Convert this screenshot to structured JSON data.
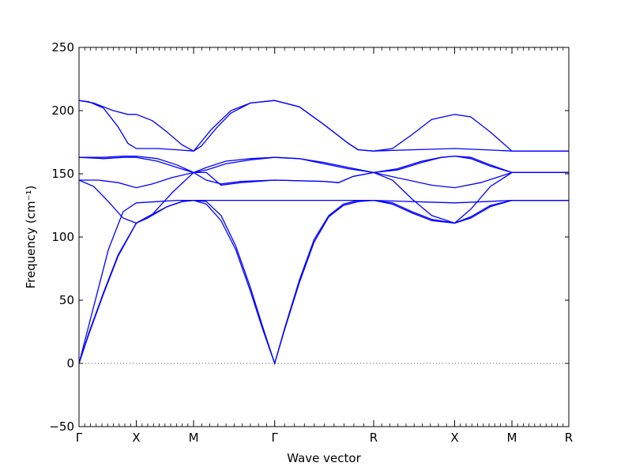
{
  "chart_data": {
    "type": "line",
    "xlabel": "Wave vector",
    "ylabel": "Frequency (cm⁻¹)",
    "ylim": [
      -50,
      250
    ],
    "yticks": [
      -50,
      0,
      50,
      100,
      150,
      200,
      250
    ],
    "xlim": [
      0,
      1
    ],
    "xticks": [
      {
        "label": "Γ",
        "x": 0.0
      },
      {
        "label": "X",
        "x": 0.117
      },
      {
        "label": "M",
        "x": 0.234
      },
      {
        "label": "Γ",
        "x": 0.3995
      },
      {
        "label": "R",
        "x": 0.6016
      },
      {
        "label": "X",
        "x": 0.7669
      },
      {
        "label": "M",
        "x": 0.8839
      },
      {
        "label": "R",
        "x": 1.0
      }
    ],
    "zero_line": true,
    "grid": false,
    "line_color": "#0000ff",
    "zero_line_color": "#555555",
    "series": [
      {
        "values": [
          [
            0,
            0
          ],
          [
            0.02,
            24
          ],
          [
            0.05,
            56
          ],
          [
            0.08,
            86
          ],
          [
            0.117,
            111
          ],
          [
            0.14,
            115
          ],
          [
            0.18,
            124
          ],
          [
            0.21,
            128
          ],
          [
            0.234,
            129
          ],
          [
            0.26,
            126
          ],
          [
            0.29,
            113
          ],
          [
            0.32,
            90
          ],
          [
            0.35,
            57
          ],
          [
            0.375,
            27
          ],
          [
            0.3995,
            0
          ],
          [
            0.42,
            28
          ],
          [
            0.45,
            66
          ],
          [
            0.48,
            98
          ],
          [
            0.51,
            117
          ],
          [
            0.54,
            126
          ],
          [
            0.57,
            129
          ],
          [
            0.6016,
            129
          ],
          [
            0.64,
            127
          ],
          [
            0.68,
            120
          ],
          [
            0.72,
            114
          ],
          [
            0.7669,
            111
          ],
          [
            0.8,
            115
          ],
          [
            0.84,
            124
          ],
          [
            0.8839,
            129
          ],
          [
            0.94,
            129
          ],
          [
            1.0,
            129
          ]
        ]
      },
      {
        "values": [
          [
            0,
            0
          ],
          [
            0.02,
            23
          ],
          [
            0.05,
            55
          ],
          [
            0.08,
            85
          ],
          [
            0.117,
            111
          ],
          [
            0.14,
            116
          ],
          [
            0.18,
            124
          ],
          [
            0.21,
            128
          ],
          [
            0.234,
            129
          ],
          [
            0.26,
            128
          ],
          [
            0.29,
            117
          ],
          [
            0.32,
            93
          ],
          [
            0.35,
            60
          ],
          [
            0.375,
            29
          ],
          [
            0.3995,
            0
          ],
          [
            0.42,
            27
          ],
          [
            0.45,
            64
          ],
          [
            0.48,
            96
          ],
          [
            0.51,
            116
          ],
          [
            0.54,
            125
          ],
          [
            0.57,
            128
          ],
          [
            0.6016,
            129
          ],
          [
            0.64,
            126
          ],
          [
            0.68,
            119
          ],
          [
            0.72,
            113
          ],
          [
            0.7669,
            111
          ],
          [
            0.8,
            116
          ],
          [
            0.84,
            125
          ],
          [
            0.8839,
            129
          ],
          [
            0.94,
            129
          ],
          [
            1.0,
            129
          ]
        ]
      },
      {
        "values": [
          [
            0,
            0
          ],
          [
            0.03,
            45
          ],
          [
            0.06,
            90
          ],
          [
            0.09,
            120
          ],
          [
            0.117,
            127
          ],
          [
            0.16,
            128
          ],
          [
            0.2,
            129
          ],
          [
            0.234,
            129
          ],
          [
            0.26,
            129
          ],
          [
            0.3995,
            129
          ],
          [
            0.5,
            129
          ],
          [
            0.6016,
            129
          ],
          [
            0.68,
            128
          ],
          [
            0.7669,
            127
          ],
          [
            0.83,
            128
          ],
          [
            0.8839,
            129
          ],
          [
            1.0,
            129
          ]
        ]
      },
      {
        "values": [
          [
            0,
            145
          ],
          [
            0.04,
            145
          ],
          [
            0.08,
            143
          ],
          [
            0.117,
            139
          ],
          [
            0.15,
            142
          ],
          [
            0.19,
            147
          ],
          [
            0.234,
            151
          ],
          [
            0.26,
            145
          ],
          [
            0.29,
            142
          ],
          [
            0.33,
            144
          ],
          [
            0.3995,
            145
          ],
          [
            0.5,
            144
          ],
          [
            0.53,
            143
          ],
          [
            0.56,
            148
          ],
          [
            0.6016,
            151
          ],
          [
            0.66,
            146
          ],
          [
            0.72,
            141
          ],
          [
            0.7669,
            139
          ],
          [
            0.82,
            143
          ],
          [
            0.8839,
            151
          ],
          [
            1.0,
            151
          ]
        ]
      },
      {
        "values": [
          [
            0,
            145
          ],
          [
            0.03,
            140
          ],
          [
            0.06,
            128
          ],
          [
            0.09,
            115
          ],
          [
            0.117,
            111
          ],
          [
            0.15,
            118
          ],
          [
            0.19,
            135
          ],
          [
            0.234,
            151
          ],
          [
            0.26,
            151
          ],
          [
            0.29,
            141
          ],
          [
            0.33,
            143
          ],
          [
            0.3995,
            145
          ],
          [
            0.5,
            144
          ],
          [
            0.53,
            143
          ],
          [
            0.56,
            148
          ],
          [
            0.6016,
            151
          ],
          [
            0.64,
            145
          ],
          [
            0.68,
            130
          ],
          [
            0.72,
            117
          ],
          [
            0.7669,
            111
          ],
          [
            0.8,
            122
          ],
          [
            0.84,
            140
          ],
          [
            0.8839,
            151
          ],
          [
            1.0,
            151
          ]
        ]
      },
      {
        "values": [
          [
            0,
            163
          ],
          [
            0.05,
            162
          ],
          [
            0.09,
            163
          ],
          [
            0.117,
            163
          ],
          [
            0.16,
            160
          ],
          [
            0.2,
            155
          ],
          [
            0.234,
            151
          ],
          [
            0.26,
            153
          ],
          [
            0.3,
            158
          ],
          [
            0.35,
            161
          ],
          [
            0.3995,
            163
          ],
          [
            0.45,
            162
          ],
          [
            0.5,
            159
          ],
          [
            0.55,
            155
          ],
          [
            0.6016,
            151
          ],
          [
            0.65,
            153
          ],
          [
            0.7,
            159
          ],
          [
            0.74,
            163
          ],
          [
            0.7669,
            164
          ],
          [
            0.8,
            162
          ],
          [
            0.84,
            156
          ],
          [
            0.8839,
            151
          ],
          [
            1.0,
            151
          ]
        ]
      },
      {
        "values": [
          [
            0,
            163
          ],
          [
            0.05,
            163
          ],
          [
            0.09,
            164
          ],
          [
            0.117,
            164
          ],
          [
            0.16,
            162
          ],
          [
            0.2,
            157
          ],
          [
            0.234,
            151
          ],
          [
            0.26,
            155
          ],
          [
            0.3,
            160
          ],
          [
            0.35,
            162
          ],
          [
            0.3995,
            163
          ],
          [
            0.45,
            162
          ],
          [
            0.5,
            158
          ],
          [
            0.55,
            154
          ],
          [
            0.6016,
            151
          ],
          [
            0.65,
            154
          ],
          [
            0.7,
            160
          ],
          [
            0.74,
            163
          ],
          [
            0.7669,
            164
          ],
          [
            0.8,
            163
          ],
          [
            0.84,
            157
          ],
          [
            0.8839,
            151
          ],
          [
            1.0,
            151
          ]
        ]
      },
      {
        "values": [
          [
            0,
            208
          ],
          [
            0.02,
            207
          ],
          [
            0.05,
            202
          ],
          [
            0.08,
            187
          ],
          [
            0.1,
            174
          ],
          [
            0.117,
            170
          ],
          [
            0.16,
            170
          ],
          [
            0.2,
            169
          ],
          [
            0.234,
            168
          ],
          [
            0.27,
            185
          ],
          [
            0.31,
            200
          ],
          [
            0.35,
            206
          ],
          [
            0.3995,
            208
          ],
          [
            0.45,
            203
          ],
          [
            0.5,
            189
          ],
          [
            0.55,
            174
          ],
          [
            0.57,
            169
          ],
          [
            0.6016,
            168
          ],
          [
            0.68,
            169
          ],
          [
            0.7669,
            170
          ],
          [
            0.83,
            169
          ],
          [
            0.8839,
            168
          ],
          [
            1.0,
            168
          ]
        ]
      },
      {
        "values": [
          [
            0,
            208
          ],
          [
            0.03,
            206
          ],
          [
            0.07,
            200
          ],
          [
            0.1,
            197
          ],
          [
            0.117,
            197
          ],
          [
            0.15,
            192
          ],
          [
            0.18,
            183
          ],
          [
            0.21,
            173
          ],
          [
            0.234,
            168
          ],
          [
            0.25,
            172
          ],
          [
            0.28,
            186
          ],
          [
            0.31,
            198
          ],
          [
            0.35,
            206
          ],
          [
            0.3995,
            208
          ],
          [
            0.45,
            203
          ],
          [
            0.5,
            189
          ],
          [
            0.55,
            174
          ],
          [
            0.57,
            169
          ],
          [
            0.6016,
            168
          ],
          [
            0.64,
            170
          ],
          [
            0.68,
            181
          ],
          [
            0.72,
            193
          ],
          [
            0.7669,
            197
          ],
          [
            0.8,
            195
          ],
          [
            0.84,
            183
          ],
          [
            0.8839,
            168
          ],
          [
            1.0,
            168
          ]
        ]
      }
    ]
  }
}
